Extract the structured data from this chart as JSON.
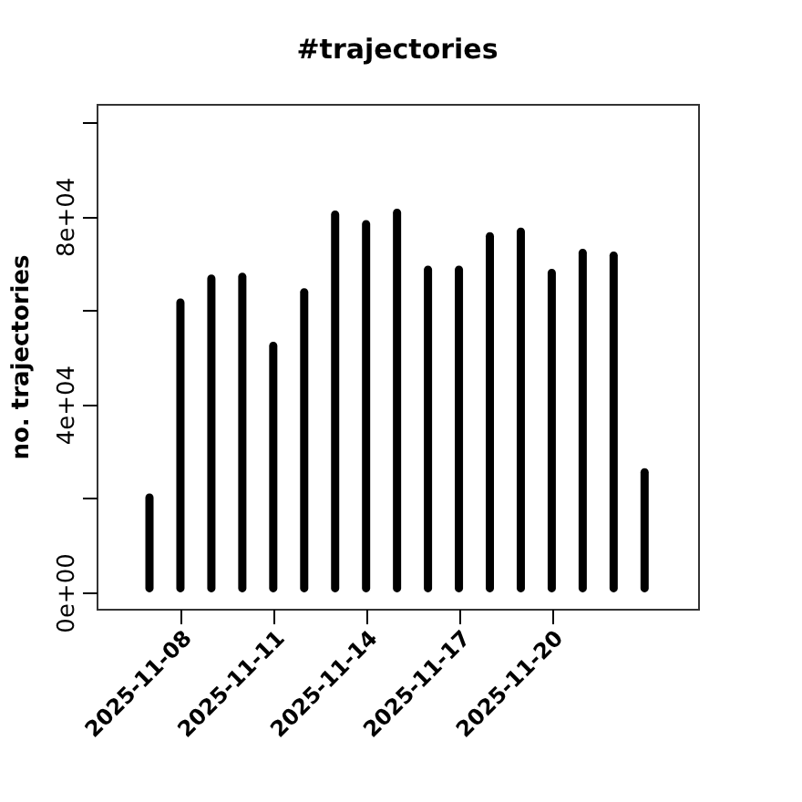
{
  "chart_data": {
    "type": "bar",
    "title": "#trajectories",
    "ylabel": "no. trajectories",
    "x": [
      "2025-11-07",
      "2025-11-08",
      "2025-11-09",
      "2025-11-10",
      "2025-11-11",
      "2025-11-12",
      "2025-11-13",
      "2025-11-14",
      "2025-11-15",
      "2025-11-16",
      "2025-11-17",
      "2025-11-18",
      "2025-11-19",
      "2025-11-20",
      "2025-11-21",
      "2025-11-22",
      "2025-11-23"
    ],
    "values": [
      21000,
      62500,
      67600,
      68000,
      53300,
      64700,
      81200,
      79200,
      81600,
      69500,
      69500,
      76600,
      77600,
      68800,
      73100,
      72500,
      26400
    ],
    "color": "#000000",
    "xlim": [
      "2025-11-05T07:00",
      "2025-11-24T17:30"
    ],
    "xticks": [
      "2025-11-08",
      "2025-11-11",
      "2025-11-14",
      "2025-11-17",
      "2025-11-20"
    ],
    "ylim": [
      -3500,
      103900
    ],
    "yticks": [
      {
        "value": 0,
        "label": "0e+00"
      },
      {
        "value": 20000,
        "label": null
      },
      {
        "value": 40000,
        "label": "4e+04"
      },
      {
        "value": 60000,
        "label": null
      },
      {
        "value": 80000,
        "label": "8e+04"
      },
      {
        "value": 100000,
        "label": null
      }
    ]
  }
}
